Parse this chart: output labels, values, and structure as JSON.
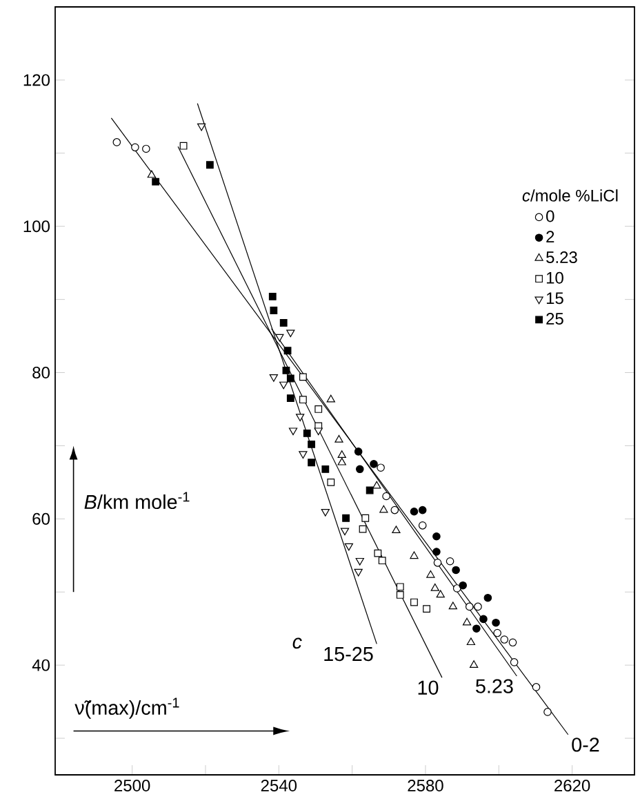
{
  "chart_data": {
    "type": "scatter",
    "xlabel": "ν̃(max)/cm$^{-1}$",
    "ylabel": "*B*/km mole$^{-1}$",
    "legend_title": "*c*/mole %LiCl",
    "legend": "top right",
    "xlim": [
      2479,
      2637
    ],
    "ylim": [
      25,
      130
    ],
    "xticks": [
      2500,
      {
        "value": 2520,
        "label": null
      },
      2540,
      {
        "value": 2560,
        "label": null
      },
      2580,
      {
        "value": 2600,
        "label": null
      },
      2620
    ],
    "yticks": [
      {
        "value": 30,
        "label": null
      },
      40,
      {
        "value": 50,
        "label": null
      },
      60,
      {
        "value": 70,
        "label": null
      },
      80,
      {
        "value": 90,
        "label": null
      },
      100,
      {
        "value": 110,
        "label": null
      },
      120
    ],
    "annotations": [
      "c"
    ],
    "series": [
      {
        "name": "0",
        "marker": "circle",
        "color": "#ffffff",
        "x": [
          2495.8,
          2500.8,
          2503.8,
          2567.8,
          2569.3,
          2571.6,
          2579.2,
          2583.3,
          2586.7,
          2588.6,
          2592,
          2594.3,
          2599.6,
          2601.5,
          2603.8,
          2604.2,
          2610.2,
          2613.3
        ],
        "values": [
          111.5,
          110.8,
          110.6,
          67,
          63.1,
          61.2,
          59.1,
          54,
          54.2,
          50.5,
          48,
          48,
          44.4,
          43.5,
          43.1,
          40.4,
          37,
          33.6
        ]
      },
      {
        "name": "2",
        "marker": "circle",
        "color": "#000000",
        "x": [
          2561.7,
          2562.1,
          2565.9,
          2576.9,
          2579.2,
          2583,
          2583,
          2588.3,
          2590.2,
          2597,
          2595.8,
          2593.9,
          2599.2
        ],
        "values": [
          69.2,
          66.8,
          67.5,
          61,
          61.2,
          57.6,
          55.5,
          53,
          50.9,
          49.2,
          46.3,
          45,
          45.8
        ]
      },
      {
        "name": "5.23",
        "marker": "triangle",
        "color": "#ffffff",
        "x": [
          2505.3,
          2554.2,
          2556.4,
          2557.2,
          2557.2,
          2566.7,
          2568.6,
          2572,
          2576.9,
          2581.4,
          2582.6,
          2584.1,
          2587.5,
          2591.3,
          2592.4,
          2593.2
        ],
        "values": [
          107,
          76.3,
          70.8,
          68.7,
          67.7,
          64.5,
          61.2,
          58.4,
          54.9,
          52.3,
          50.5,
          49.6,
          48,
          45.8,
          43.1,
          40
        ]
      },
      {
        "name": "10",
        "marker": "square",
        "color": "#ffffff",
        "x": [
          2514,
          2546.6,
          2546.6,
          2550.8,
          2550.8,
          2554.2,
          2563.6,
          2562.9,
          2567,
          2568.2,
          2573.1,
          2573.1,
          2576.9,
          2580.3
        ],
        "values": [
          111,
          79.4,
          76.3,
          75,
          72.7,
          65,
          60.1,
          58.6,
          55.3,
          54.3,
          50.7,
          49.6,
          48.6,
          47.7
        ]
      },
      {
        "name": "15",
        "marker": "triangle_down",
        "color": "#ffffff",
        "x": [
          2518.9,
          2543.2,
          2540.2,
          2538.6,
          2541.3,
          2545.8,
          2543.9,
          2546.6,
          2550.8,
          2552.7,
          2558,
          2559.1,
          2562.1,
          2561.7
        ],
        "values": [
          113.7,
          85.5,
          84.9,
          79.4,
          78.4,
          74,
          72.1,
          68.9,
          72.1,
          61,
          58.4,
          56.3,
          54.3,
          52.8
        ]
      },
      {
        "name": "25",
        "marker": "square",
        "color": "#000000",
        "x": [
          2506.4,
          2521.2,
          2538.3,
          2538.6,
          2541.3,
          2542.4,
          2542,
          2543.2,
          2543.2,
          2547.7,
          2548.9,
          2548.9,
          2552.7,
          2558.3,
          2564.8
        ],
        "values": [
          106.1,
          108.4,
          90.4,
          88.5,
          86.8,
          83,
          80.3,
          79.2,
          76.5,
          71.7,
          70.2,
          67.7,
          66.8,
          60.1,
          63.9
        ]
      },
      {
        "name": "0-2",
        "type": "line",
        "marker": "none",
        "line_style": "solid",
        "color": "#000000",
        "x": [
          2494.3,
          2618.9
        ],
        "values": [
          114.8,
          30.5
        ]
      },
      {
        "name": "5.23",
        "type": "line",
        "marker": "none",
        "line_style": "solid",
        "color": "#000000",
        "x": [
          2538,
          2604.9
        ],
        "values": [
          86,
          38.5
        ]
      },
      {
        "name": "10",
        "type": "line",
        "marker": "none",
        "line_style": "solid",
        "color": "#000000",
        "x": [
          2512.5,
          2584.5
        ],
        "values": [
          110.9,
          38.3
        ]
      },
      {
        "name": "15-25",
        "type": "line",
        "marker": "none",
        "line_style": "solid",
        "color": "#000000",
        "x": [
          2517.8,
          2566.7
        ],
        "values": [
          116.8,
          42.9
        ]
      }
    ]
  }
}
